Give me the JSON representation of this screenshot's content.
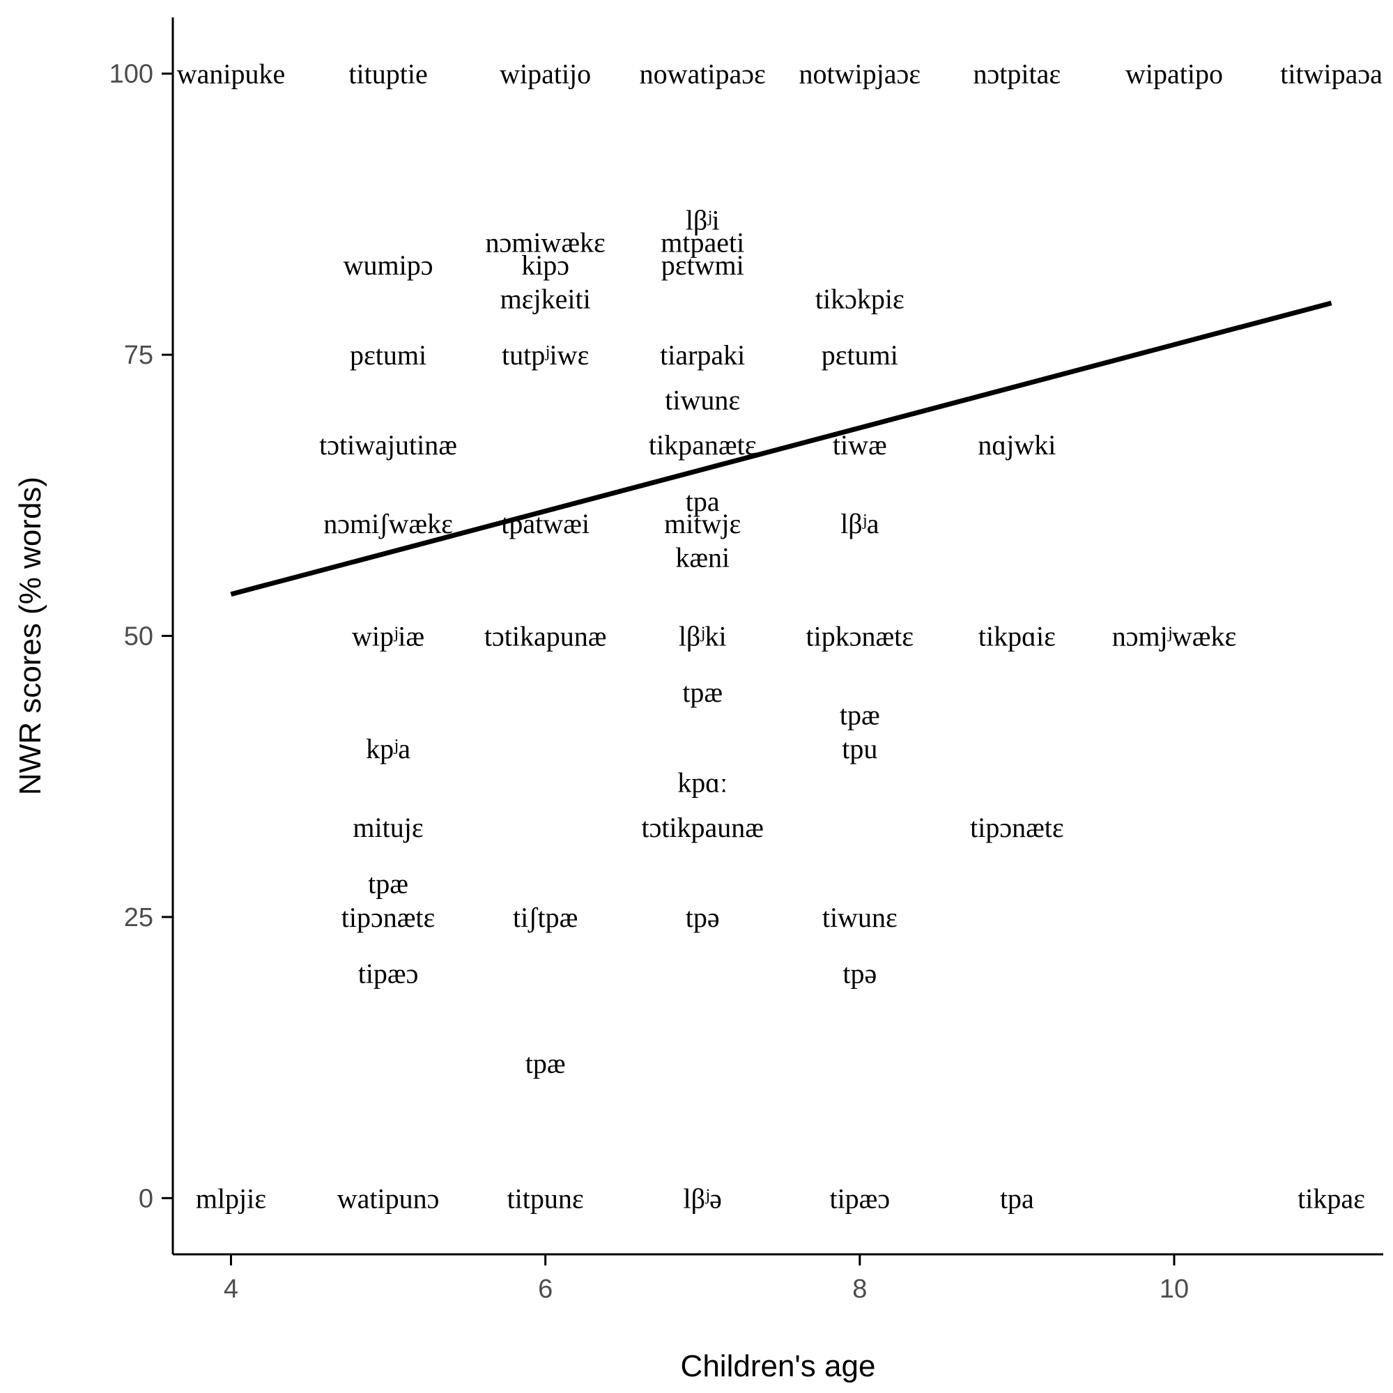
{
  "chart_data": {
    "type": "scatter",
    "xlabel": "Children's age",
    "ylabel": "NWR scores (% words)",
    "xlim": [
      3.63,
      11.33
    ],
    "ylim": [
      -5,
      105
    ],
    "x_ticks": [
      4,
      6,
      8,
      10
    ],
    "y_ticks": [
      0,
      25,
      50,
      75,
      100
    ],
    "grid": false,
    "legend": "none",
    "trend_line": {
      "x": [
        4,
        11
      ],
      "y": [
        53.7,
        79.6
      ]
    },
    "series": [
      {
        "points": [
          {
            "x": 4,
            "y": 100,
            "label": "wanipuke"
          },
          {
            "x": 5,
            "y": 100,
            "label": "tituptie"
          },
          {
            "x": 6,
            "y": 100,
            "label": "wipatijo"
          },
          {
            "x": 7,
            "y": 100,
            "label": "nowatipaɔɛ"
          },
          {
            "x": 8,
            "y": 100,
            "label": "notwipjaɔɛ"
          },
          {
            "x": 9,
            "y": 100,
            "label": "nɔtpitaɛ"
          },
          {
            "x": 10,
            "y": 100,
            "label": "wipatipo"
          },
          {
            "x": 11,
            "y": 100,
            "label": "titwipaɔa"
          },
          {
            "x": 7,
            "y": 87,
            "label": "lβʲi"
          },
          {
            "x": 6,
            "y": 85,
            "label": "nɔmiwækɛ"
          },
          {
            "x": 7,
            "y": 85,
            "label": "mtpaeti"
          },
          {
            "x": 5,
            "y": 83,
            "label": "wumipɔ"
          },
          {
            "x": 6,
            "y": 83,
            "label": "kipɔ"
          },
          {
            "x": 7,
            "y": 83,
            "label": "pɛtwmi"
          },
          {
            "x": 6,
            "y": 80,
            "label": "mɛjkeiti"
          },
          {
            "x": 8,
            "y": 80,
            "label": "tikɔkpiɛ"
          },
          {
            "x": 5,
            "y": 75,
            "label": "pɛtumi"
          },
          {
            "x": 6,
            "y": 75,
            "label": "tutpʲiwɛ"
          },
          {
            "x": 7,
            "y": 75,
            "label": "tiarpaki"
          },
          {
            "x": 8,
            "y": 75,
            "label": "pɛtumi"
          },
          {
            "x": 7,
            "y": 71,
            "label": "tiwunɛ"
          },
          {
            "x": 5,
            "y": 67,
            "label": "tɔtiwajutinæ"
          },
          {
            "x": 7,
            "y": 67,
            "label": "tikpanætɛ"
          },
          {
            "x": 8,
            "y": 67,
            "label": "tiwæ"
          },
          {
            "x": 9,
            "y": 67,
            "label": "nɑjwki"
          },
          {
            "x": 7,
            "y": 62,
            "label": "tpa"
          },
          {
            "x": 5,
            "y": 60,
            "label": "nɔmiʃwækɛ"
          },
          {
            "x": 6,
            "y": 60,
            "label": "tpatwæi"
          },
          {
            "x": 7,
            "y": 60,
            "label": "mitwjɛ"
          },
          {
            "x": 8,
            "y": 60,
            "label": "lβʲa"
          },
          {
            "x": 7,
            "y": 57,
            "label": "kæni"
          },
          {
            "x": 5,
            "y": 50,
            "label": "wipʲiæ"
          },
          {
            "x": 6,
            "y": 50,
            "label": "tɔtikapunæ"
          },
          {
            "x": 7,
            "y": 50,
            "label": "lβʲki"
          },
          {
            "x": 8,
            "y": 50,
            "label": "tipkɔnætɛ"
          },
          {
            "x": 9,
            "y": 50,
            "label": "tikpɑiɛ"
          },
          {
            "x": 10,
            "y": 50,
            "label": "nɔmjʲwækɛ"
          },
          {
            "x": 7,
            "y": 45,
            "label": "tpæ"
          },
          {
            "x": 8,
            "y": 43,
            "label": "tpæ"
          },
          {
            "x": 5,
            "y": 40,
            "label": "kpʲa"
          },
          {
            "x": 8,
            "y": 40,
            "label": "tpu"
          },
          {
            "x": 7,
            "y": 37,
            "label": "kpɑː"
          },
          {
            "x": 5,
            "y": 33,
            "label": "mitujɛ"
          },
          {
            "x": 7,
            "y": 33,
            "label": "tɔtikpaunæ"
          },
          {
            "x": 9,
            "y": 33,
            "label": "tipɔnætɛ"
          },
          {
            "x": 5,
            "y": 28,
            "label": "tpæ"
          },
          {
            "x": 5,
            "y": 25,
            "label": "tipɔnætɛ"
          },
          {
            "x": 6,
            "y": 25,
            "label": "tiʃtpæ"
          },
          {
            "x": 7,
            "y": 25,
            "label": "tpə"
          },
          {
            "x": 8,
            "y": 25,
            "label": "tiwunɛ"
          },
          {
            "x": 5,
            "y": 20,
            "label": "tipæɔ"
          },
          {
            "x": 8,
            "y": 20,
            "label": "tpə"
          },
          {
            "x": 6,
            "y": 12,
            "label": "tpæ"
          },
          {
            "x": 4,
            "y": 0,
            "label": "mlpjiɛ"
          },
          {
            "x": 5,
            "y": 0,
            "label": "watipunɔ"
          },
          {
            "x": 6,
            "y": 0,
            "label": "titpunɛ"
          },
          {
            "x": 7,
            "y": 0,
            "label": "lβʲə"
          },
          {
            "x": 8,
            "y": 0,
            "label": "tipæɔ"
          },
          {
            "x": 9,
            "y": 0,
            "label": "tpa"
          },
          {
            "x": 11,
            "y": 0,
            "label": "tikpaɛ"
          }
        ]
      }
    ]
  }
}
